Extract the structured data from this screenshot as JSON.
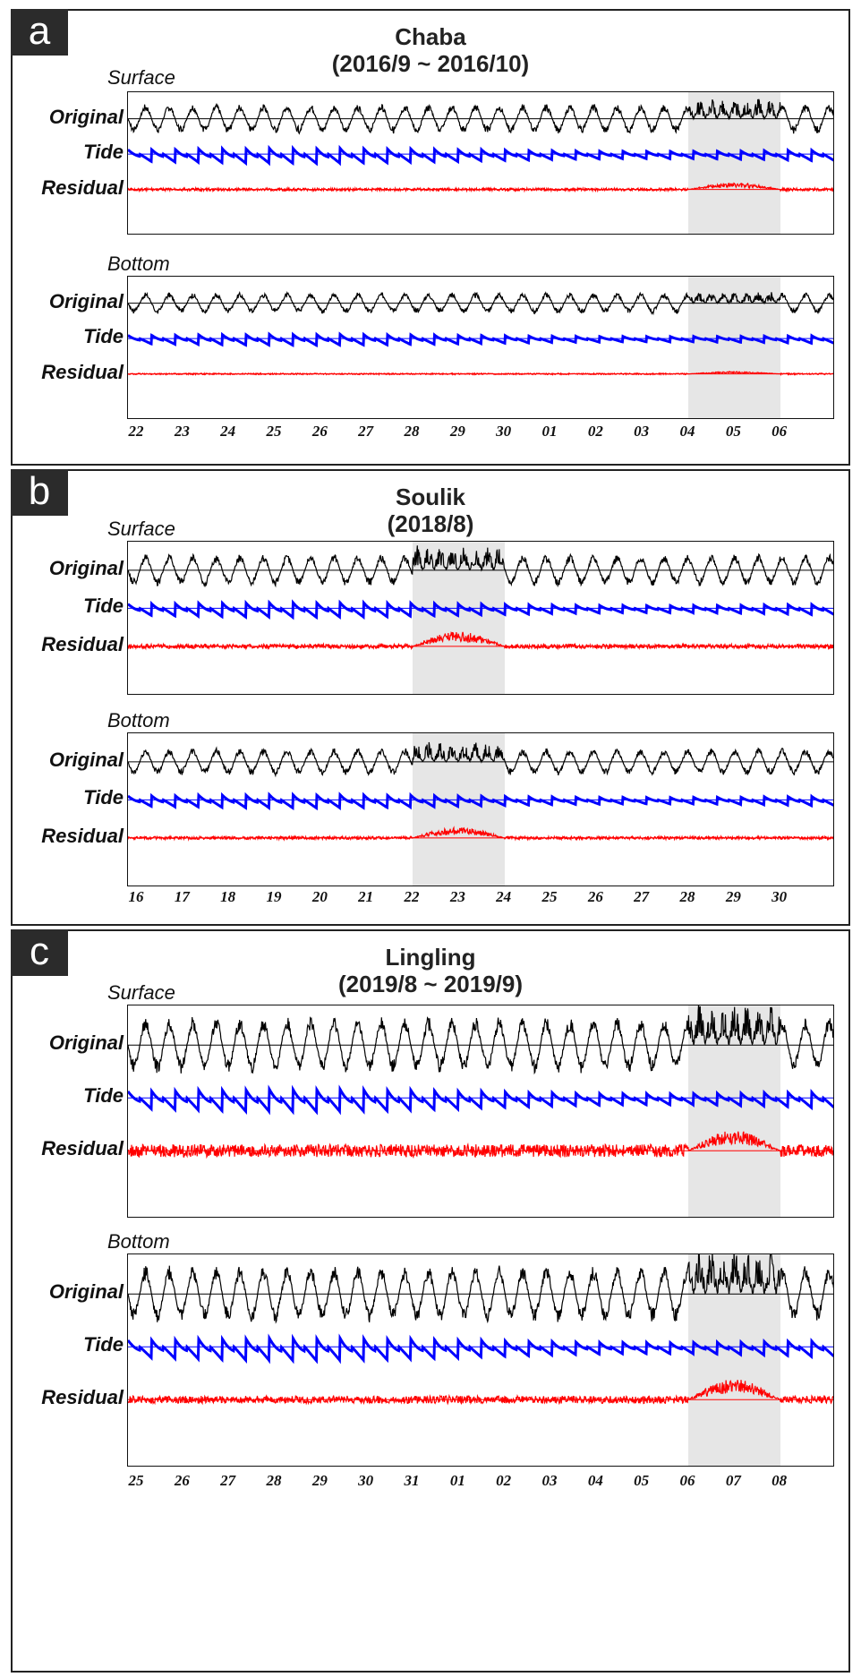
{
  "chart_data": [
    {
      "type": "line",
      "panel_label": "a",
      "title_line1": "Chaba",
      "title_line2": "(2016/9 ~ 2016/10)",
      "x_tick_labels": [
        "22",
        "23",
        "24",
        "25",
        "26",
        "27",
        "28",
        "29",
        "30",
        "01",
        "02",
        "03",
        "04",
        "05",
        "06"
      ],
      "highlight_ticks": [
        "04",
        "06"
      ],
      "subplots": [
        {
          "label": "Surface",
          "series": [
            {
              "name": "Original",
              "color": "#000000",
              "amplitude": 0.7,
              "event_start": 0.8,
              "event_amp": 0.35
            },
            {
              "name": "Tide",
              "color": "#0000ff",
              "amplitude": 0.55
            },
            {
              "name": "Residual",
              "color": "#ff0000",
              "amplitude": 0.08,
              "event_start": 0.8,
              "event_amp": 0.35
            }
          ]
        },
        {
          "label": "Bottom",
          "series": [
            {
              "name": "Original",
              "color": "#000000",
              "amplitude": 0.5,
              "event_start": 0.8,
              "event_amp": 0.1
            },
            {
              "name": "Tide",
              "color": "#0000ff",
              "amplitude": 0.4
            },
            {
              "name": "Residual",
              "color": "#ff0000",
              "amplitude": 0.04,
              "event_start": 0.8,
              "event_amp": 0.12
            }
          ]
        }
      ]
    },
    {
      "type": "line",
      "panel_label": "b",
      "title_line1": "Soulik",
      "title_line2": "(2018/8)",
      "x_tick_labels": [
        "16",
        "17",
        "18",
        "19",
        "20",
        "21",
        "22",
        "23",
        "24",
        "25",
        "26",
        "27",
        "28",
        "29",
        "30"
      ],
      "highlight_ticks": [
        "22",
        "24"
      ],
      "subplots": [
        {
          "label": "Surface",
          "series": [
            {
              "name": "Original",
              "color": "#000000",
              "amplitude": 0.7,
              "event_start": 0.4,
              "event_amp": 0.6
            },
            {
              "name": "Tide",
              "color": "#0000ff",
              "amplitude": 0.5
            },
            {
              "name": "Residual",
              "color": "#ff0000",
              "amplitude": 0.12,
              "event_start": 0.4,
              "event_amp": 0.7
            }
          ]
        },
        {
          "label": "Bottom",
          "series": [
            {
              "name": "Original",
              "color": "#000000",
              "amplitude": 0.6,
              "event_start": 0.4,
              "event_amp": 0.45
            },
            {
              "name": "Tide",
              "color": "#0000ff",
              "amplitude": 0.45
            },
            {
              "name": "Residual",
              "color": "#ff0000",
              "amplitude": 0.08,
              "event_start": 0.4,
              "event_amp": 0.5
            }
          ]
        }
      ]
    },
    {
      "type": "line",
      "panel_label": "c",
      "title_line1": "Lingling",
      "title_line2": "(2019/8 ~ 2019/9)",
      "x_tick_labels": [
        "25",
        "26",
        "27",
        "28",
        "29",
        "30",
        "31",
        "01",
        "02",
        "03",
        "04",
        "05",
        "06",
        "07",
        "08"
      ],
      "highlight_ticks": [
        "06",
        "08"
      ],
      "subplots": [
        {
          "label": "Surface",
          "series": [
            {
              "name": "Original",
              "color": "#000000",
              "amplitude": 0.9,
              "event_start": 0.8,
              "event_amp": 0.5
            },
            {
              "name": "Tide",
              "color": "#0000ff",
              "amplitude": 0.55
            },
            {
              "name": "Residual",
              "color": "#ff0000",
              "amplitude": 0.25,
              "event_start": 0.8,
              "event_amp": 0.7
            }
          ]
        },
        {
          "label": "Bottom",
          "series": [
            {
              "name": "Original",
              "color": "#000000",
              "amplitude": 0.9,
              "event_start": 0.8,
              "event_amp": 0.6
            },
            {
              "name": "Tide",
              "color": "#0000ff",
              "amplitude": 0.55
            },
            {
              "name": "Residual",
              "color": "#ff0000",
              "amplitude": 0.15,
              "event_start": 0.8,
              "event_amp": 0.7
            }
          ]
        }
      ]
    }
  ],
  "shade_color": "#e6e6e6"
}
